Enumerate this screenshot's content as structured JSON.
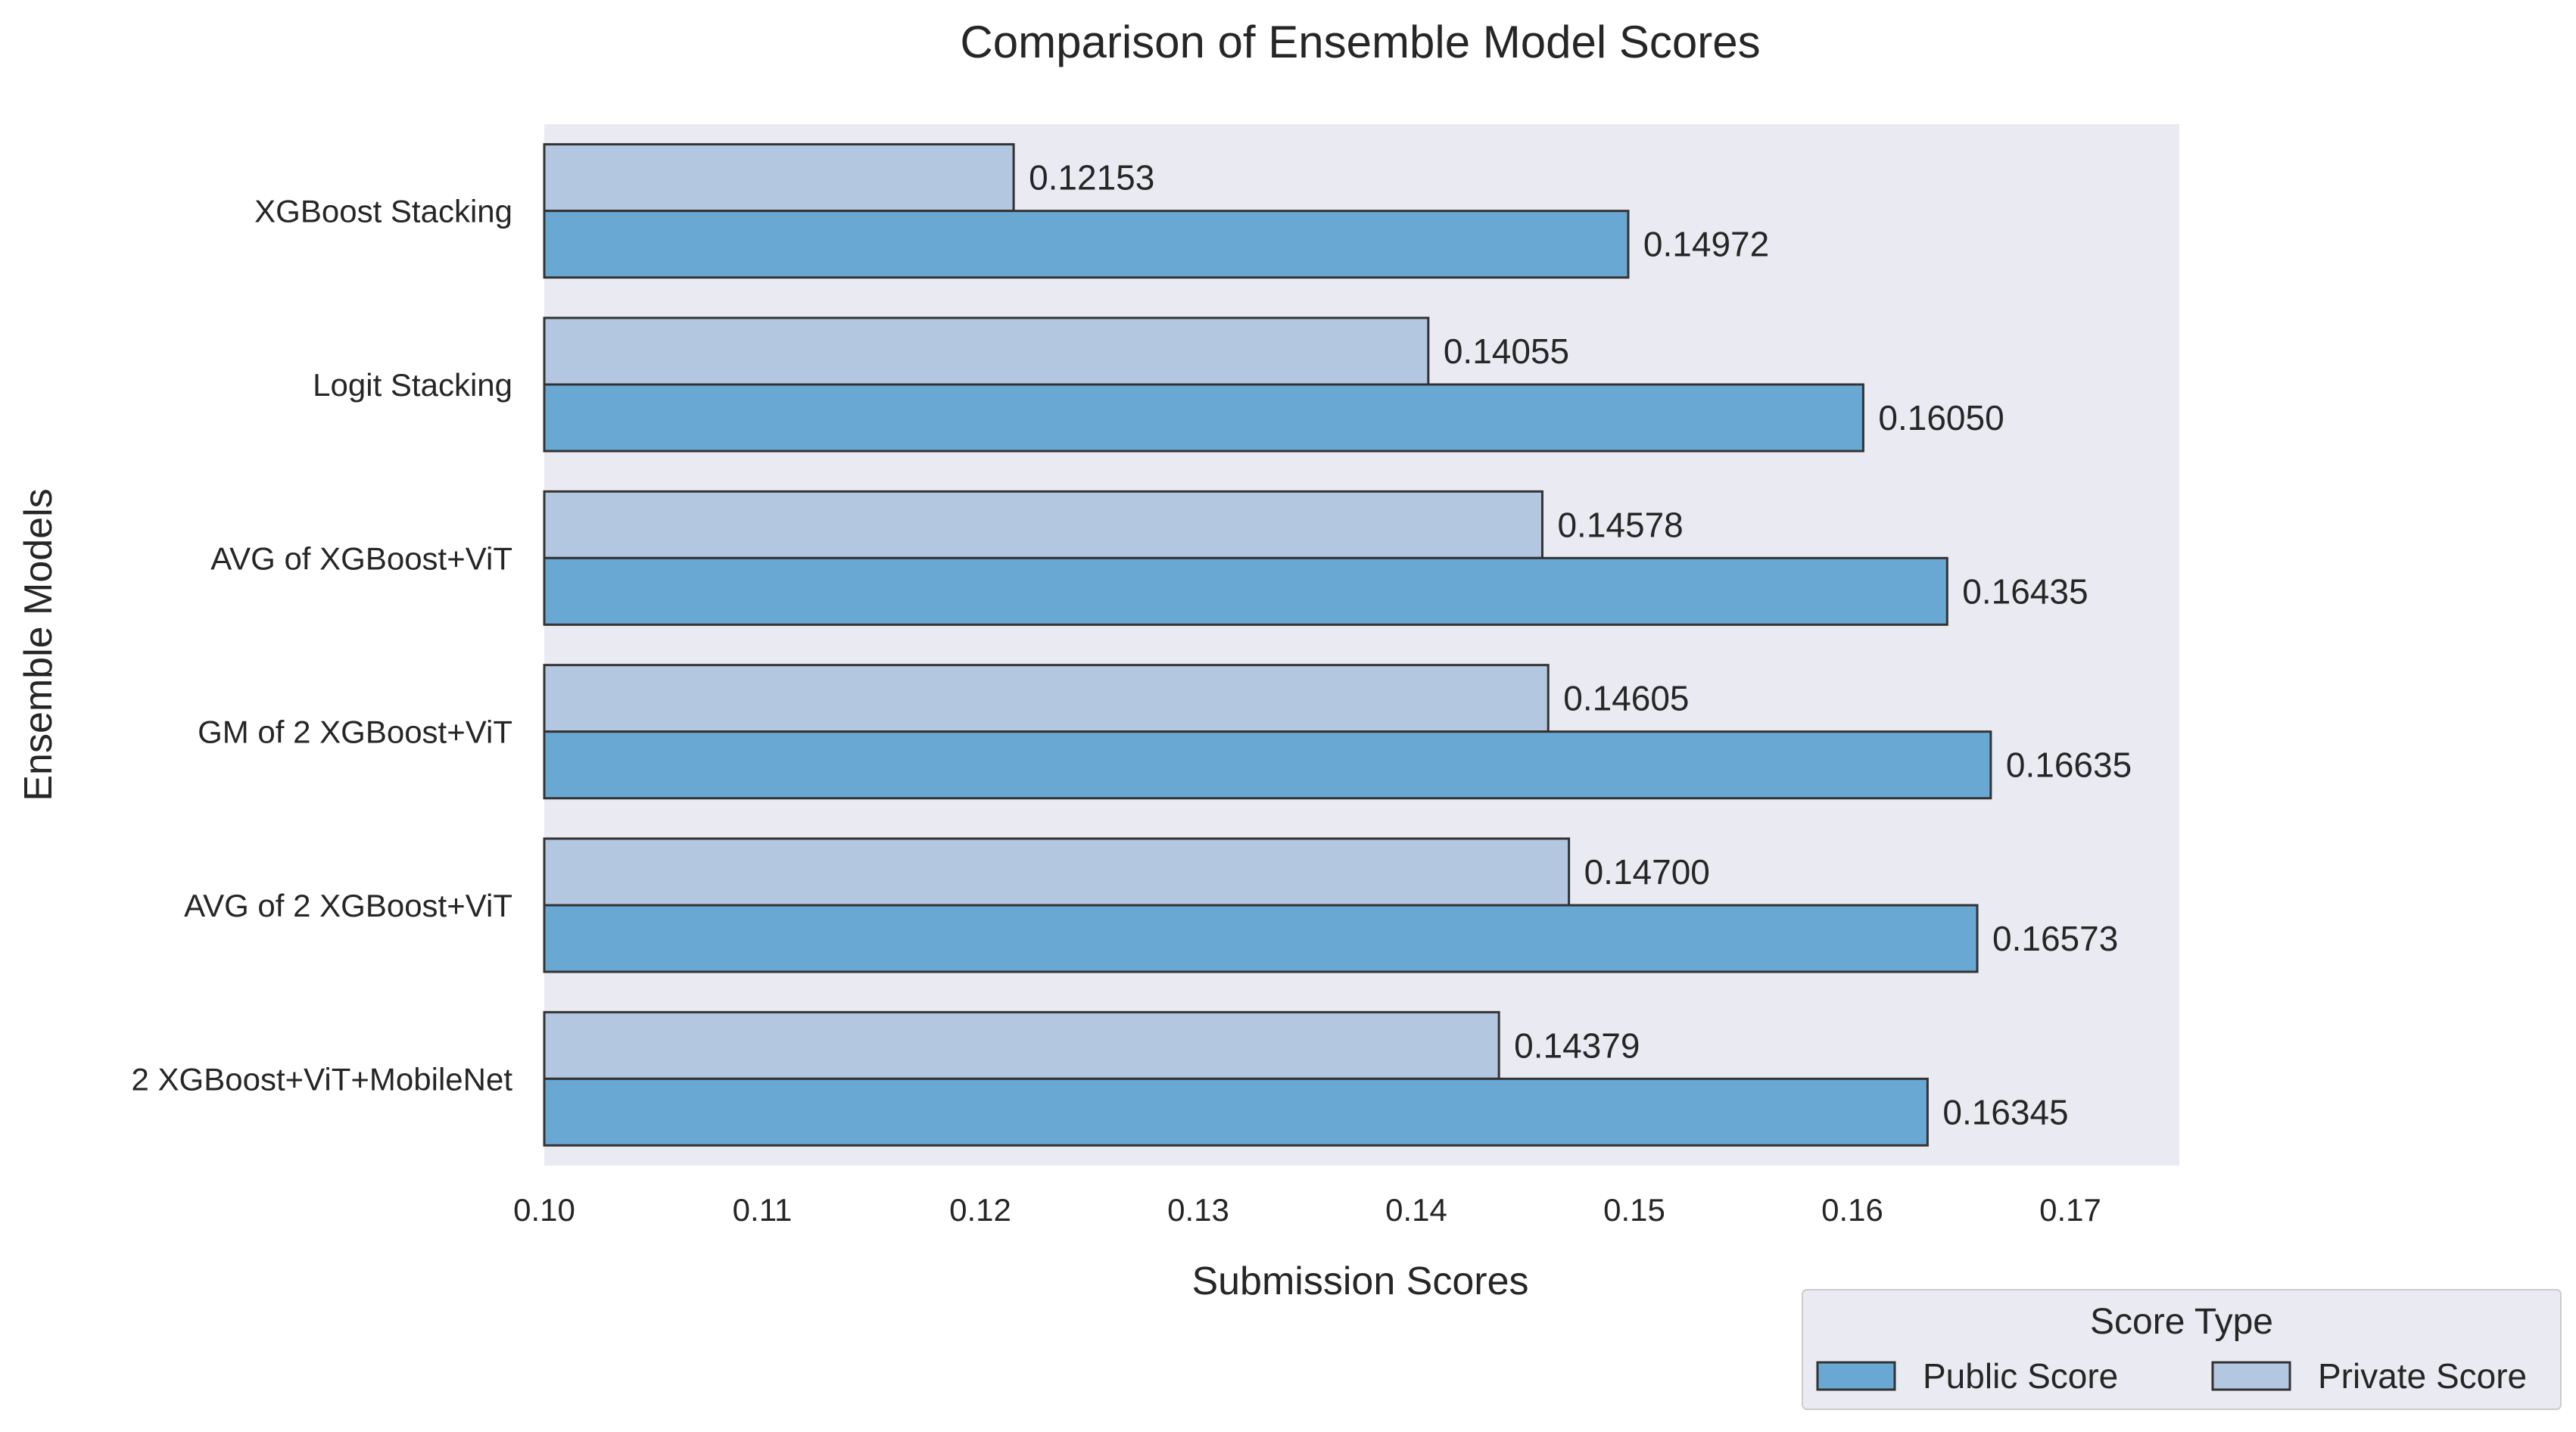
{
  "chart_data": {
    "type": "bar",
    "orientation": "horizontal",
    "title": "Comparison of Ensemble Model Scores",
    "xlabel": "Submission Scores",
    "ylabel": "Ensemble Models",
    "xlim": [
      0.1,
      0.175
    ],
    "xticks": [
      "0.10",
      "0.11",
      "0.12",
      "0.13",
      "0.14",
      "0.15",
      "0.16",
      "0.17"
    ],
    "categories": [
      "XGBoost Stacking",
      "Logit Stacking",
      "AVG of XGBoost+ViT",
      "GM of 2 XGBoost+ViT",
      "AVG of 2 XGBoost+ViT",
      "2 XGBoost+ViT+MobileNet"
    ],
    "series": [
      {
        "name": "Private Score",
        "color": "#b3c7e1",
        "values": [
          0.12153,
          0.14055,
          0.14578,
          0.14605,
          0.147,
          0.14379
        ],
        "labels": [
          "0.12153",
          "0.14055",
          "0.14578",
          "0.14605",
          "0.14700",
          "0.14379"
        ]
      },
      {
        "name": "Public Score",
        "color": "#6aa8d4",
        "values": [
          0.14972,
          0.1605,
          0.16435,
          0.16635,
          0.16573,
          0.16345
        ],
        "labels": [
          "0.14972",
          "0.16050",
          "0.16435",
          "0.16635",
          "0.16573",
          "0.16345"
        ]
      }
    ],
    "grid": false,
    "plot_background": "#eaeaf2",
    "bar_edge_color": "#333333",
    "legend": {
      "title": "Score Type",
      "placement": "bottom-right",
      "entries": [
        "Public Score",
        "Private Score"
      ]
    }
  }
}
